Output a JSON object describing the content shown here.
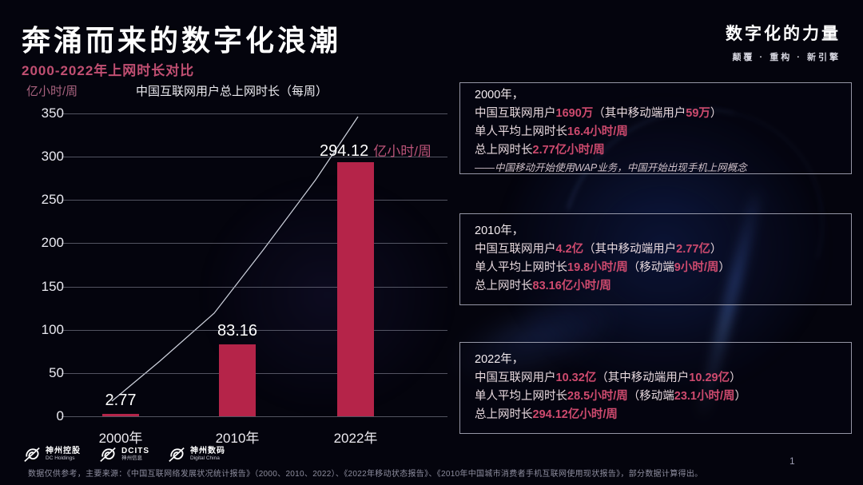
{
  "header": {
    "title": "奔涌而来的数字化浪潮",
    "subtitle": "2000-2022年上网时长对比",
    "brand_name": "数字化的力量",
    "brand_tagline": "颠覆 · 重构 · 新引擎"
  },
  "chart_data": {
    "type": "bar",
    "title": "中国互联网用户总上网时长（每周）",
    "unit_label": "亿小时/周",
    "categories": [
      "2000年",
      "2010年",
      "2022年"
    ],
    "values": [
      2.77,
      83.16,
      294.12
    ],
    "bar_labels": [
      {
        "value": "2.77",
        "suffix": ""
      },
      {
        "value": "83.16",
        "suffix": ""
      },
      {
        "value": "294.12",
        "suffix": "亿小时/周"
      }
    ],
    "ylim": [
      0,
      350
    ],
    "yticks": [
      0,
      50,
      100,
      150,
      200,
      250,
      300,
      350
    ],
    "grid": true,
    "legend": false,
    "bar_color": "#b52449",
    "trend_line": true
  },
  "info_boxes": [
    {
      "lines": [
        [
          {
            "t": "2000年，",
            "y": true
          }
        ],
        [
          {
            "t": "中国互联网用户"
          },
          {
            "t": "1690万",
            "h": true
          },
          {
            "t": "（其中移动端用户"
          },
          {
            "t": "59万",
            "h": true
          },
          {
            "t": "）"
          }
        ],
        [
          {
            "t": "单人平均上网时长"
          },
          {
            "t": "16.4小时/周",
            "h": true
          }
        ],
        [
          {
            "t": "总上网时长"
          },
          {
            "t": "2.77亿小时/周",
            "h": true
          }
        ]
      ],
      "note": "——中国移动开始使用WAP业务，中国开始出现手机上网概念"
    },
    {
      "lines": [
        [
          {
            "t": "2010年，",
            "y": true
          }
        ],
        [
          {
            "t": "中国互联网用户"
          },
          {
            "t": "4.2亿",
            "h": true
          },
          {
            "t": "（其中移动端用户"
          },
          {
            "t": "2.77亿",
            "h": true
          },
          {
            "t": "）"
          }
        ],
        [
          {
            "t": "单人平均上网时长"
          },
          {
            "t": "19.8小时/周",
            "h": true
          },
          {
            "t": "（移动端"
          },
          {
            "t": "9小时/周",
            "h": true
          },
          {
            "t": "）"
          }
        ],
        [
          {
            "t": "总上网时长"
          },
          {
            "t": "83.16亿小时/周",
            "h": true
          }
        ]
      ],
      "note": ""
    },
    {
      "lines": [
        [
          {
            "t": "2022年，",
            "y": true
          }
        ],
        [
          {
            "t": "中国互联网用户"
          },
          {
            "t": "10.32亿",
            "h": true
          },
          {
            "t": "（其中移动端用户"
          },
          {
            "t": "10.29亿",
            "h": true
          },
          {
            "t": "）"
          }
        ],
        [
          {
            "t": "单人平均上网时长"
          },
          {
            "t": "28.5小时/周",
            "h": true
          },
          {
            "t": "（移动端"
          },
          {
            "t": "23.1小时/周",
            "h": true
          },
          {
            "t": "）"
          }
        ],
        [
          {
            "t": "总上网时长"
          },
          {
            "t": "294.12亿小时/周",
            "h": true
          }
        ]
      ],
      "note": ""
    }
  ],
  "footer": {
    "logos": [
      {
        "line1": "神州控股",
        "line2": "DC Holdings"
      },
      {
        "line1": "DCITS",
        "line2": "神州信息"
      },
      {
        "line1": "神州数码",
        "line2": "Digital China"
      }
    ],
    "source": "数据仅供参考，主要来源：《中国互联网络发展状况统计报告》（2000、2010、2022）、《2022年移动状态报告》、《2010年中国城市消费者手机互联网使用现状报告》，部分数据计算得出。",
    "page": "1"
  }
}
